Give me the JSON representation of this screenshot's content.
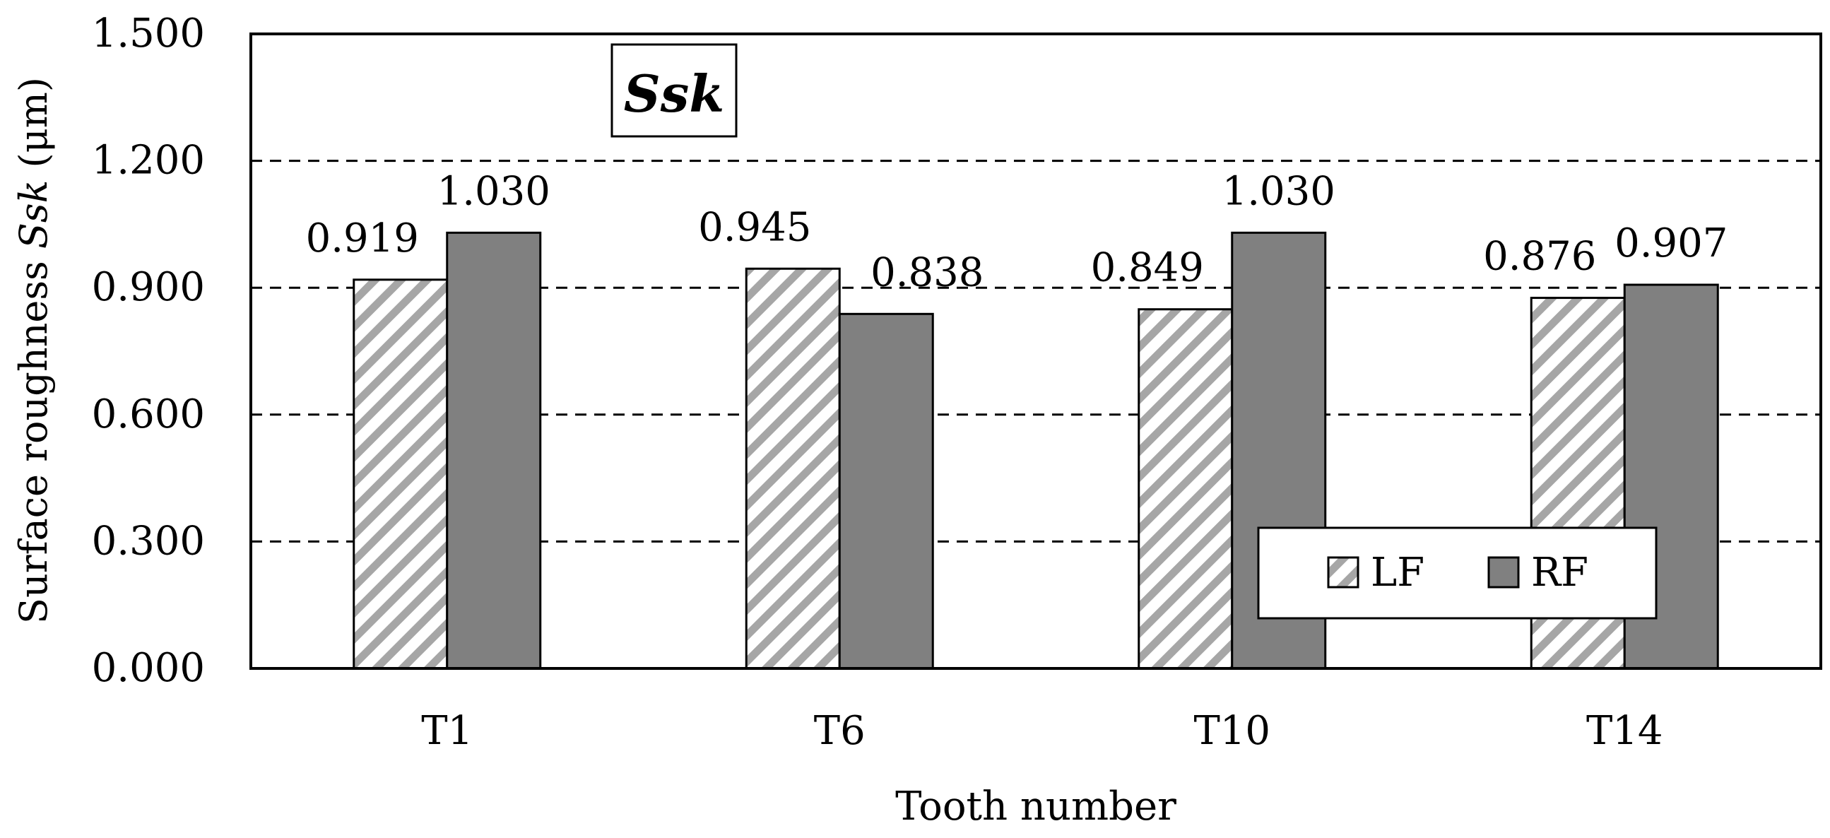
{
  "chart_data": {
    "type": "bar",
    "title": "Ssk",
    "ylabel_prefix": "Surface roughness ",
    "ylabel_symbol": "Ssk",
    "ylabel_suffix": " (μm)",
    "xlabel": "Tooth number",
    "categories": [
      "T1",
      "T6",
      "T10",
      "T14"
    ],
    "series": [
      {
        "name": "LF",
        "values": [
          0.919,
          0.945,
          0.849,
          0.876
        ],
        "fill": "hatched"
      },
      {
        "name": "RF",
        "values": [
          1.03,
          0.838,
          1.03,
          0.907
        ],
        "fill": "#808080"
      }
    ],
    "data_labels": [
      [
        "0.919",
        "0.945",
        "0.849",
        "0.876"
      ],
      [
        "1.030",
        "0.838",
        "1.030",
        "0.907"
      ]
    ],
    "ylim": [
      0,
      1.5
    ],
    "yticks": [
      0.0,
      0.3,
      0.6,
      0.9,
      1.2,
      1.5
    ],
    "ytick_labels": [
      "0.000",
      "0.300",
      "0.600",
      "0.900",
      "1.200",
      "1.500"
    ],
    "grid": "dashed-horizontal",
    "legend_position": "bottom-right",
    "colors": {
      "lf_hatch": "#a6a6a6",
      "rf_fill": "#808080",
      "axis": "#000000"
    }
  }
}
